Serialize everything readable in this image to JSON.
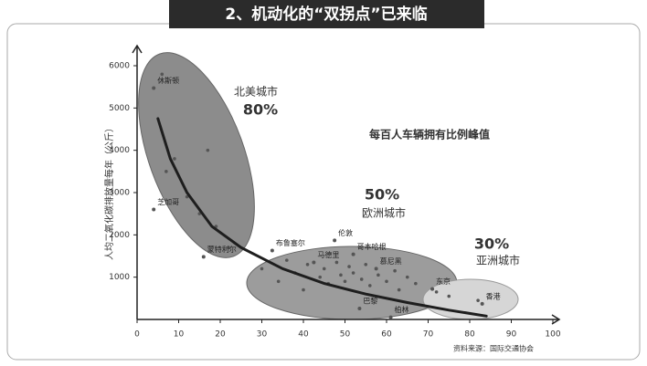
{
  "chart_data": {
    "type": "scatter",
    "title": "2、机动化的“双拐点”已来临",
    "y_label": "人均二氧化碳排放量每年（公斤）",
    "annotation": "每百人车辆拥有比例峰值",
    "source": "资料来源：国际交通协会",
    "groups": [
      {
        "name": "北美城市",
        "share": "80%"
      },
      {
        "name": "欧洲城市",
        "share": "50%"
      },
      {
        "name": "亚洲城市",
        "share": "30%"
      }
    ],
    "xlim": [
      0,
      100
    ],
    "xticks": [
      0,
      10,
      20,
      30,
      40,
      50,
      60,
      70,
      80,
      90,
      100
    ],
    "ylim": [
      0,
      6000
    ],
    "yticks": [
      1000,
      2000,
      3000,
      4000,
      5000,
      6000
    ],
    "color": "#555555",
    "points": {
      "x": [
        6,
        7,
        9,
        12,
        15,
        17,
        19,
        22,
        30,
        34,
        36,
        38,
        40,
        41,
        44,
        45,
        46,
        48,
        49,
        50,
        51,
        52,
        54,
        55,
        56,
        58,
        60,
        62,
        63,
        65,
        67,
        72,
        75,
        82
      ],
      "values": [
        5800,
        3500,
        3800,
        2900,
        2500,
        4000,
        2200,
        1700,
        1200,
        900,
        1400,
        1100,
        700,
        1300,
        1000,
        1200,
        850,
        1350,
        1050,
        900,
        1250,
        1100,
        950,
        1300,
        800,
        1050,
        900,
        1150,
        700,
        1000,
        850,
        650,
        550,
        450
      ]
    },
    "cities": [
      {
        "name": "休斯顿",
        "x": 4,
        "y": 5470
      },
      {
        "name": "芝加哥",
        "x": 4,
        "y": 2600
      },
      {
        "name": "蒙特利尔",
        "x": 16,
        "y": 1480
      },
      {
        "name": "布鲁塞尔",
        "x": 32.5,
        "y": 1630
      },
      {
        "name": "伦敦",
        "x": 47.5,
        "y": 1870
      },
      {
        "name": "马德里",
        "x": 42.5,
        "y": 1350
      },
      {
        "name": "哥本哈根",
        "x": 52,
        "y": 1540
      },
      {
        "name": "慕尼黑",
        "x": 57.5,
        "y": 1200
      },
      {
        "name": "巴黎",
        "x": 53.5,
        "y": 260
      },
      {
        "name": "柏林",
        "x": 61,
        "y": 50
      },
      {
        "name": "东京",
        "x": 71,
        "y": 720
      },
      {
        "name": "香港",
        "x": 83,
        "y": 370
      }
    ],
    "trend": {
      "x": [
        5,
        8,
        12,
        18,
        25,
        35,
        45,
        55,
        65,
        75,
        84
      ],
      "values": [
        4750,
        3800,
        3000,
        2200,
        1700,
        1200,
        850,
        600,
        400,
        220,
        80
      ]
    }
  }
}
